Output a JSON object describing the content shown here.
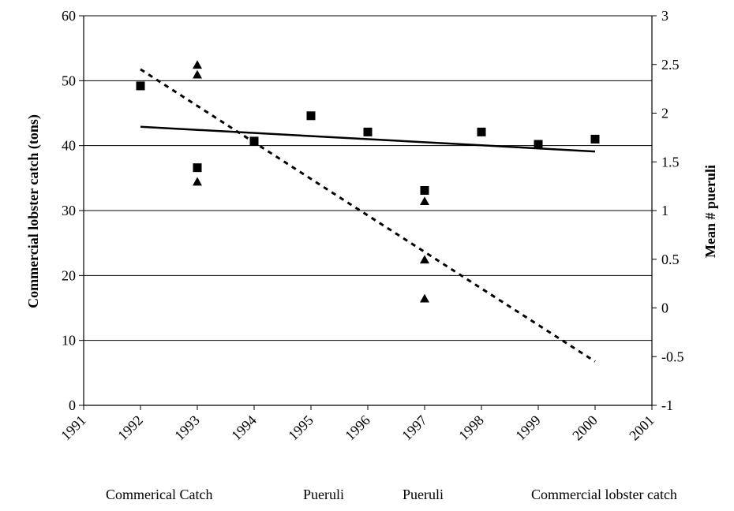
{
  "chart_data": {
    "type": "scatter",
    "x_axis": {
      "min": 1991,
      "max": 2001,
      "ticks": [
        "1991",
        "1992",
        "1993",
        "1994",
        "1995",
        "1996",
        "1997",
        "1998",
        "1999",
        "2000",
        "2001"
      ]
    },
    "y_left": {
      "label": "Commercial lobster catch (tons)",
      "min": 0,
      "max": 60,
      "ticks": [
        "0",
        "10",
        "20",
        "30",
        "40",
        "50",
        "60"
      ]
    },
    "y_right": {
      "label": "Mean # pueruli",
      "min": -1,
      "max": 3,
      "ticks": [
        "-1",
        "-0.5",
        "0",
        "0.5",
        "1",
        "1.5",
        "2",
        "2.5",
        "3"
      ]
    },
    "grid": "horizontal",
    "legend_position": "bottom",
    "series": [
      {
        "name": "Commerical Catch",
        "kind": "markers",
        "marker": "square",
        "axis": "left",
        "points": [
          {
            "x": 1992,
            "y": 49.2
          },
          {
            "x": 1993,
            "y": 36.6
          },
          {
            "x": 1994,
            "y": 40.7
          },
          {
            "x": 1995,
            "y": 44.6
          },
          {
            "x": 1996,
            "y": 42.1
          },
          {
            "x": 1997,
            "y": 33.1
          },
          {
            "x": 1998,
            "y": 42.1
          },
          {
            "x": 1999,
            "y": 40.2
          },
          {
            "x": 2000,
            "y": 41.0
          }
        ]
      },
      {
        "name": "Pueruli",
        "kind": "markers",
        "marker": "triangle",
        "axis": "right",
        "points": [
          {
            "x": 1993,
            "y": 2.5
          },
          {
            "x": 1993,
            "y": 2.4
          },
          {
            "x": 1993,
            "y": 1.3
          },
          {
            "x": 1997,
            "y": 1.1
          },
          {
            "x": 1997,
            "y": 0.5
          },
          {
            "x": 1997,
            "y": 0.1
          }
        ]
      },
      {
        "name": "Pueruli",
        "kind": "line",
        "style": "dotted",
        "axis": "right",
        "points": [
          {
            "x": 1992,
            "y": 2.45
          },
          {
            "x": 2000,
            "y": -0.55
          }
        ]
      },
      {
        "name": "Commercial lobster catch",
        "kind": "line",
        "style": "solid",
        "axis": "left",
        "points": [
          {
            "x": 1992,
            "y": 42.9
          },
          {
            "x": 2000,
            "y": 39.1
          }
        ]
      }
    ],
    "legend": [
      {
        "label": "Commerical Catch",
        "marker": "square"
      },
      {
        "label": "Pueruli",
        "marker": "triangle"
      },
      {
        "label": "Pueruli",
        "marker": "dotted-line"
      },
      {
        "label": "Commercial lobster catch",
        "marker": "solid-line"
      }
    ]
  }
}
